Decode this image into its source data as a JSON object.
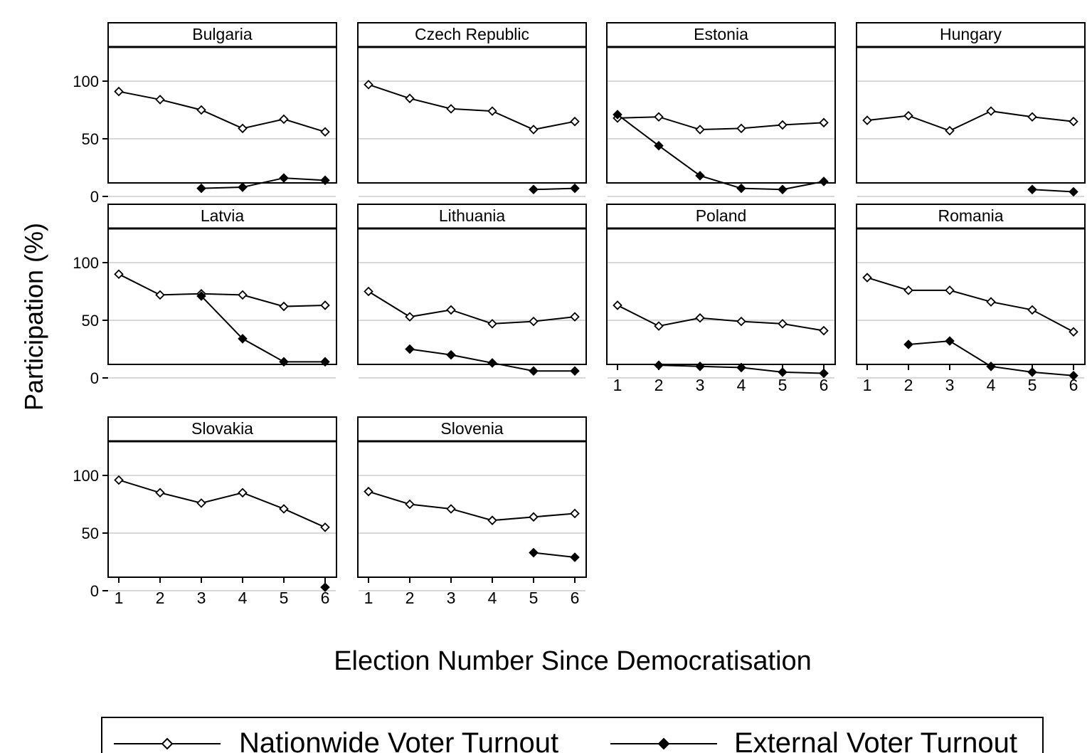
{
  "figure": {
    "ylabel": "Participation (%)",
    "xlabel": "Election Number Since Democratisation",
    "legend": {
      "placement": "bottom",
      "items": [
        {
          "label": "Nationwide Voter Turnout",
          "marker": "hollow-diamond"
        },
        {
          "label": "External Voter Turnout",
          "marker": "filled-diamond"
        }
      ]
    },
    "colors": {
      "line": "#000000",
      "grid": "#cccccc",
      "hollow_fill": "#ffffff",
      "filled": "#000000"
    }
  },
  "chart_data": {
    "type": "line",
    "layout": "small-multiples 4 columns",
    "xlim": [
      1,
      6
    ],
    "ylim": [
      0,
      100
    ],
    "x_ticks": [
      1,
      2,
      3,
      4,
      5,
      6
    ],
    "y_ticks": [
      0,
      50,
      100
    ],
    "grid": "horizontal",
    "series_names": [
      "Nationwide Voter Turnout",
      "External Voter Turnout"
    ],
    "panels": [
      {
        "title": "Bulgaria",
        "nationwide": [
          [
            1,
            91
          ],
          [
            2,
            84
          ],
          [
            3,
            75
          ],
          [
            4,
            59
          ],
          [
            5,
            67
          ],
          [
            6,
            56
          ]
        ],
        "external": [
          [
            3,
            7
          ],
          [
            4,
            8
          ],
          [
            5,
            16
          ],
          [
            6,
            14
          ]
        ]
      },
      {
        "title": "Czech Republic",
        "nationwide": [
          [
            1,
            97
          ],
          [
            2,
            85
          ],
          [
            3,
            76
          ],
          [
            4,
            74
          ],
          [
            5,
            58
          ],
          [
            6,
            65
          ]
        ],
        "external": [
          [
            5,
            6
          ],
          [
            6,
            7
          ]
        ]
      },
      {
        "title": "Estonia",
        "nationwide": [
          [
            1,
            68
          ],
          [
            2,
            69
          ],
          [
            3,
            58
          ],
          [
            4,
            59
          ],
          [
            5,
            62
          ],
          [
            6,
            64
          ]
        ],
        "external": [
          [
            1,
            71
          ],
          [
            2,
            44
          ],
          [
            3,
            18
          ],
          [
            4,
            7
          ],
          [
            5,
            6
          ],
          [
            6,
            13
          ]
        ]
      },
      {
        "title": "Hungary",
        "nationwide": [
          [
            1,
            66
          ],
          [
            2,
            70
          ],
          [
            3,
            57
          ],
          [
            4,
            74
          ],
          [
            5,
            69
          ],
          [
            6,
            65
          ]
        ],
        "external": [
          [
            5,
            6
          ],
          [
            6,
            4
          ]
        ]
      },
      {
        "title": "Latvia",
        "nationwide": [
          [
            1,
            90
          ],
          [
            2,
            72
          ],
          [
            3,
            73
          ],
          [
            4,
            72
          ],
          [
            5,
            62
          ],
          [
            6,
            63
          ]
        ],
        "external": [
          [
            3,
            71
          ],
          [
            4,
            34
          ],
          [
            5,
            14
          ],
          [
            6,
            14
          ]
        ]
      },
      {
        "title": "Lithuania",
        "nationwide": [
          [
            1,
            75
          ],
          [
            2,
            53
          ],
          [
            3,
            59
          ],
          [
            4,
            47
          ],
          [
            5,
            49
          ],
          [
            6,
            53
          ]
        ],
        "external": [
          [
            2,
            25
          ],
          [
            3,
            20
          ],
          [
            4,
            13
          ],
          [
            5,
            6
          ],
          [
            6,
            6
          ]
        ]
      },
      {
        "title": "Poland",
        "nationwide": [
          [
            1,
            63
          ],
          [
            2,
            45
          ],
          [
            3,
            52
          ],
          [
            4,
            49
          ],
          [
            5,
            47
          ],
          [
            6,
            41
          ]
        ],
        "external": [
          [
            2,
            11
          ],
          [
            3,
            10
          ],
          [
            4,
            9
          ],
          [
            5,
            5
          ],
          [
            6,
            4
          ]
        ]
      },
      {
        "title": "Romania",
        "nationwide": [
          [
            1,
            87
          ],
          [
            2,
            76
          ],
          [
            3,
            76
          ],
          [
            4,
            66
          ],
          [
            5,
            59
          ],
          [
            6,
            40
          ]
        ],
        "external": [
          [
            2,
            29
          ],
          [
            3,
            32
          ],
          [
            4,
            10
          ],
          [
            5,
            5
          ],
          [
            6,
            2
          ]
        ]
      },
      {
        "title": "Slovakia",
        "nationwide": [
          [
            1,
            96
          ],
          [
            2,
            85
          ],
          [
            3,
            76
          ],
          [
            4,
            85
          ],
          [
            5,
            71
          ],
          [
            6,
            55
          ]
        ],
        "external": [
          [
            6,
            3
          ]
        ]
      },
      {
        "title": "Slovenia",
        "nationwide": [
          [
            1,
            86
          ],
          [
            2,
            75
          ],
          [
            3,
            71
          ],
          [
            4,
            61
          ],
          [
            5,
            64
          ],
          [
            6,
            67
          ]
        ],
        "external": [
          [
            5,
            33
          ],
          [
            6,
            29
          ]
        ]
      }
    ]
  }
}
